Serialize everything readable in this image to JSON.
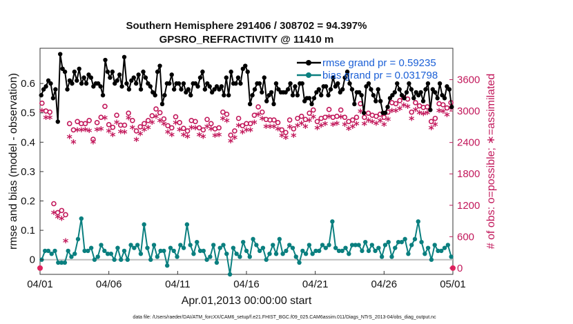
{
  "chart_data": {
    "type": "line",
    "title": "Southern Hemisphere 291406 / 308702 = 94.397%",
    "subtitle": "GPSRO_REFRACTIVITY @ 11410 m",
    "xlabel": "Apr.01,2013 00:00:00 start",
    "ylabel": "rmse and bias (model - observation)",
    "y2label": "# of obs: o=possible; ∗=assimilated",
    "xticks": [
      "04/01",
      "04/06",
      "04/11",
      "04/16",
      "04/21",
      "04/26",
      "05/01"
    ],
    "xlim": [
      0,
      30
    ],
    "ylim": [
      -0.05,
      0.72
    ],
    "yticks": [
      "0",
      "0.1",
      "0.2",
      "0.3",
      "0.4",
      "0.5",
      "0.6"
    ],
    "y2lim": [
      -120,
      4200
    ],
    "y2ticks": [
      "0",
      "600",
      "1200",
      "1800",
      "2400",
      "3000",
      "3600"
    ],
    "legend": [
      {
        "label": "rmse grand pr = 0.59235",
        "color": "#000000"
      },
      {
        "label": "bias grand pr = 0.031798",
        "color": "#0a7f7f"
      }
    ],
    "series": [
      {
        "name": "rmse",
        "color": "#000000",
        "values": [
          0.56,
          0.58,
          0.59,
          0.61,
          0.6,
          0.55,
          0.58,
          0.47,
          0.7,
          0.65,
          0.64,
          0.58,
          0.61,
          0.6,
          0.64,
          0.61,
          0.65,
          0.6,
          0.62,
          0.6,
          0.63,
          0.62,
          0.59,
          0.6,
          0.6,
          0.59,
          0.56,
          0.68,
          0.64,
          0.62,
          0.64,
          0.6,
          0.61,
          0.63,
          0.59,
          0.69,
          0.6,
          0.58,
          0.61,
          0.62,
          0.6,
          0.63,
          0.58,
          0.64,
          0.62,
          0.6,
          0.59,
          0.57,
          0.56,
          0.64,
          0.66,
          0.53,
          0.56,
          0.6,
          0.6,
          0.63,
          0.58,
          0.6,
          0.6,
          0.58,
          0.6,
          0.57,
          0.58,
          0.56,
          0.6,
          0.6,
          0.59,
          0.62,
          0.64,
          0.58,
          0.6,
          0.59,
          0.57,
          0.58,
          0.59,
          0.58,
          0.59,
          0.56,
          0.62,
          0.56,
          0.64,
          0.6,
          0.6,
          0.62,
          0.6,
          0.65,
          0.66,
          0.64,
          0.53,
          0.56,
          0.58,
          0.6,
          0.6,
          0.57,
          0.62,
          0.54,
          0.56,
          0.57,
          0.53,
          0.6,
          0.58,
          0.57,
          0.57,
          0.57,
          0.58,
          0.6,
          0.56,
          0.59,
          0.56,
          0.6,
          0.6,
          0.54,
          0.55,
          0.55,
          0.53,
          0.55,
          0.57,
          0.58,
          0.56,
          0.59,
          0.59,
          0.56,
          0.58,
          0.62,
          0.59,
          0.6,
          0.57,
          0.58,
          0.62,
          0.64,
          0.6,
          0.58,
          0.53,
          0.57,
          0.57,
          0.56,
          0.5,
          0.59,
          0.6,
          0.58,
          0.56,
          0.54,
          0.58,
          0.54,
          0.5,
          0.5,
          0.52,
          0.55,
          0.56,
          0.57,
          0.6,
          0.58,
          0.56,
          0.55,
          0.57,
          0.6,
          0.58,
          0.55,
          0.57,
          0.56,
          0.57,
          0.54,
          0.58,
          0.6,
          0.51,
          0.58,
          0.57,
          0.55,
          0.6,
          0.56,
          0.55,
          0.59,
          0.58,
          0.52
        ]
      },
      {
        "name": "bias",
        "color": "#0a7f7f",
        "values": [
          0.0,
          0.03,
          0.03,
          0.02,
          0.03,
          -0.01,
          -0.01,
          -0.01,
          0.03,
          0.01,
          0.02,
          0.07,
          0.14,
          0.03,
          0.03,
          0.04,
          0.0,
          0.01,
          0.05,
          0.03,
          0.02,
          0.02,
          0.0,
          0.04,
          0.0,
          0.03,
          0.0,
          0.05,
          0.04,
          0.05,
          0.02,
          0.12,
          0.04,
          0.0,
          0.05,
          0.01,
          0.03,
          0.03,
          -0.02,
          0.04,
          0.03,
          0.01,
          0.05,
          0.04,
          0.12,
          0.05,
          0.02,
          0.06,
          0.03,
          0.03,
          0.0,
          0.01,
          0.05,
          -0.01,
          0.04,
          0.05,
          0.02,
          -0.05,
          0.04,
          0.02,
          0.01,
          0.06,
          0.03,
          0.01,
          0.07,
          0.05,
          0.03,
          0.04,
          0.0,
          0.02,
          0.05,
          0.02,
          0.07,
          0.02,
          0.03,
          0.05,
          0.04,
          0.01,
          -0.01,
          0.03,
          0.02,
          0.05,
          0.02,
          0.03,
          0.03,
          0.05,
          0.04,
          0.05,
          0.13,
          0.04,
          0.03,
          0.03,
          0.04,
          0.02,
          0.05,
          0.05,
          0.05,
          0.03,
          0.06,
          0.03,
          0.05,
          0.03,
          0.04,
          0.01,
          0.05,
          0.06,
          0.01,
          0.04,
          0.06,
          0.06,
          0.07,
          0.02,
          0.05,
          0.07,
          0.13,
          0.06,
          0.02,
          0.04,
          0.0,
          0.05,
          0.03,
          0.03,
          0.04,
          0.05,
          0.01
        ]
      },
      {
        "name": "possible",
        "color": "#c2185b",
        "values": [
          3150,
          3000,
          2980,
          1230,
          1060,
          1100,
          1020,
          2760,
          2640,
          2800,
          2760,
          2760,
          2820,
          2460,
          2780,
          2880,
          3090,
          2740,
          2690,
          2920,
          2730,
          2730,
          2960,
          2820,
          2620,
          2700,
          2760,
          2820,
          2910,
          3040,
          2970,
          2850,
          2720,
          2680,
          2890,
          2780,
          2670,
          2620,
          2820,
          2800,
          2680,
          2640,
          2840,
          2760,
          2660,
          2680,
          2980,
          2940,
          2540,
          2620,
          2860,
          2720,
          2760,
          2760,
          2920,
          3080,
          2980,
          2840,
          2830,
          2830,
          2780,
          2640,
          2590,
          2830,
          2660,
          2860,
          2900,
          2840,
          2960,
          3020,
          2800,
          2860,
          2880,
          3030,
          2880,
          2900,
          3020,
          2880,
          2800,
          2830,
          2880,
          3140,
          2880,
          2960,
          2920,
          2900,
          2940,
          2880,
          2980,
          3160,
          3140,
          3200,
          3260,
          3230,
          2980,
          3160,
          3100,
          3070,
          3080,
          2800,
          2860,
          3140,
          3120,
          3060,
          3160
        ]
      },
      {
        "name": "assimilated",
        "color": "#c2185b",
        "values": [
          3000,
          2870,
          2870,
          1050,
          970,
          940,
          510,
          2500,
          2400,
          2630,
          2630,
          2640,
          2620,
          2400,
          2640,
          2650,
          2860,
          2610,
          2540,
          2780,
          2600,
          2590,
          2860,
          2680,
          2450,
          2560,
          2640,
          2680,
          2780,
          2890,
          2810,
          2750,
          2590,
          2540,
          2770,
          2640,
          2540,
          2510,
          2680,
          2670,
          2540,
          2510,
          2700,
          2650,
          2530,
          2540,
          2850,
          2810,
          2420,
          2490,
          2720,
          2590,
          2630,
          2630,
          2780,
          2930,
          2850,
          2700,
          2700,
          2700,
          2650,
          2530,
          2490,
          2690,
          2530,
          2720,
          2760,
          2700,
          2820,
          2880,
          2670,
          2720,
          2750,
          2890,
          2740,
          2760,
          2880,
          2740,
          2660,
          2700,
          2750,
          2990,
          2750,
          2820,
          2790,
          2760,
          2810,
          2740,
          2840,
          3000,
          3000,
          3040,
          3110,
          3080,
          2850,
          3020,
          2960,
          2940,
          2960,
          2670,
          2740,
          3000,
          2990,
          2920,
          3050
        ]
      }
    ]
  },
  "footer": {
    "text": "data file: /Users/raeder/DAI/ATM_forcXX/CAM6_setup/f.e21.FHIST_BGC.f09_025.CAM6assim.011/Diags_NTrS_2013-04/obs_diag_output.nc"
  },
  "colors": {
    "rmse": "#000000",
    "bias": "#0a7f7f",
    "obs": "#c2185b",
    "zero": "#bdbdbd"
  }
}
